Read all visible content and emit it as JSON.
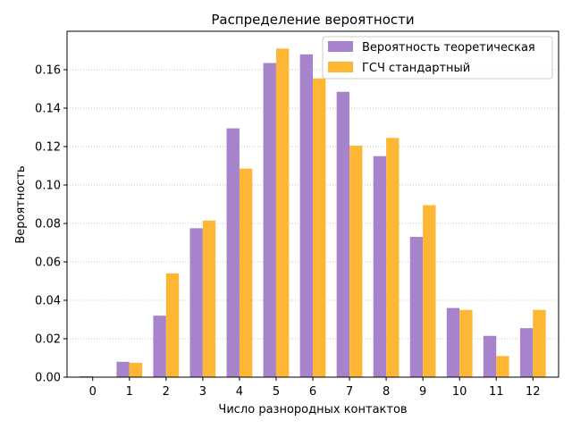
{
  "chart_data": {
    "type": "bar",
    "title": "Распределение вероятности",
    "xlabel": "Число разнородных контактов",
    "ylabel": "Вероятность",
    "categories": [
      "0",
      "1",
      "2",
      "3",
      "4",
      "5",
      "6",
      "7",
      "8",
      "9",
      "10",
      "11",
      "12"
    ],
    "series": [
      {
        "name": "Вероятность теоретическая",
        "color": "#a783cc",
        "values": [
          0.0005,
          0.008,
          0.032,
          0.0775,
          0.1295,
          0.1635,
          0.168,
          0.1485,
          0.115,
          0.073,
          0.036,
          0.0215,
          0.0255
        ]
      },
      {
        "name": "ГСЧ стандартный",
        "color": "#feb734",
        "values": [
          0.0,
          0.0075,
          0.054,
          0.0815,
          0.1085,
          0.171,
          0.1555,
          0.1205,
          0.1245,
          0.0895,
          0.035,
          0.011,
          0.035
        ]
      }
    ],
    "ylim": [
      0,
      0.18
    ],
    "yticks": [
      0.0,
      0.02,
      0.04,
      0.06,
      0.08,
      0.1,
      0.12,
      0.14,
      0.16
    ],
    "ytick_labels": [
      "0.00",
      "0.02",
      "0.04",
      "0.06",
      "0.08",
      "0.10",
      "0.12",
      "0.14",
      "0.16"
    ],
    "grid": "y-dotted",
    "legend_position": "top-right"
  }
}
